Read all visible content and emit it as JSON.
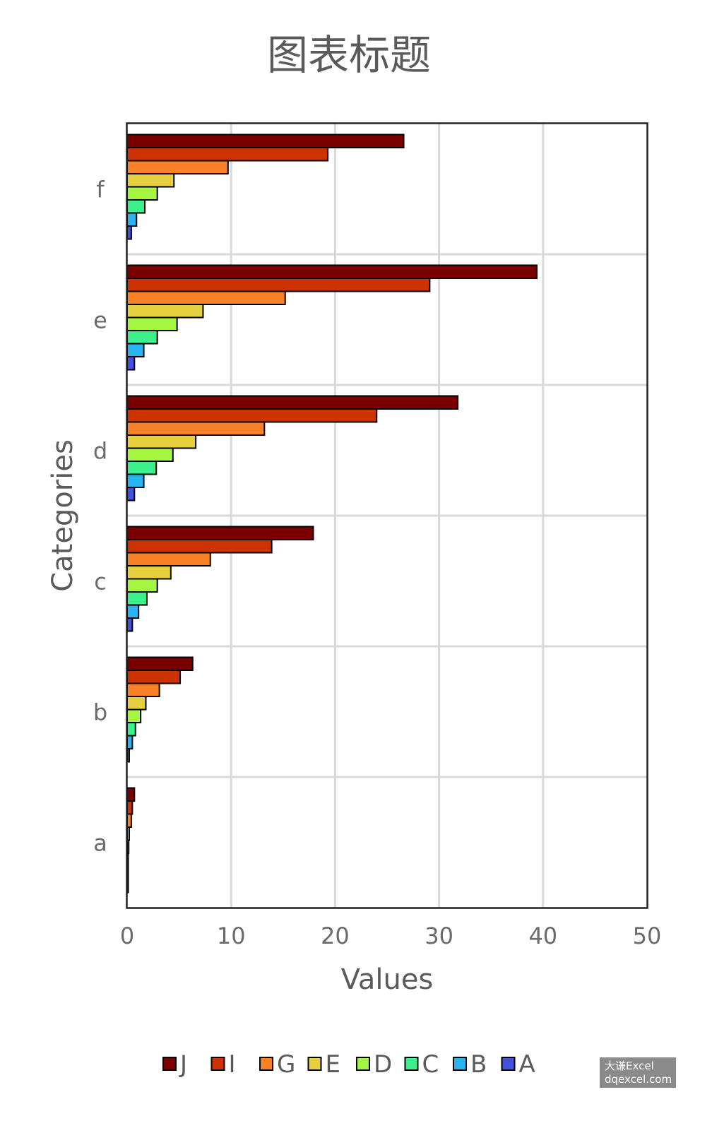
{
  "chart_data": {
    "type": "bar",
    "orientation": "horizontal",
    "title": "图表标题",
    "xlabel": "Values",
    "ylabel": "Categories",
    "xlim": [
      0,
      50
    ],
    "xticks": [
      "0",
      "10",
      "20",
      "30",
      "40",
      "50"
    ],
    "categories": [
      "a",
      "b",
      "c",
      "d",
      "e",
      "f"
    ],
    "grid": true,
    "legend_position": "bottom",
    "series": [
      {
        "name": "J",
        "color": "#7a0000",
        "values": [
          0.7,
          6.3,
          17.9,
          31.8,
          39.4,
          26.6
        ]
      },
      {
        "name": "I",
        "color": "#cc3300",
        "values": [
          0.5,
          5.1,
          13.9,
          24.0,
          29.1,
          19.3
        ]
      },
      {
        "name": "G",
        "color": "#f98228",
        "values": [
          0.4,
          3.1,
          8.0,
          13.2,
          15.2,
          9.7
        ]
      },
      {
        "name": "E",
        "color": "#e6d040",
        "values": [
          0.2,
          1.8,
          4.2,
          6.6,
          7.3,
          4.5
        ]
      },
      {
        "name": "D",
        "color": "#a4f640",
        "values": [
          0.15,
          1.3,
          2.9,
          4.4,
          4.8,
          2.9
        ]
      },
      {
        "name": "C",
        "color": "#3cf08c",
        "values": [
          0.1,
          0.8,
          1.9,
          2.8,
          2.9,
          1.7
        ]
      },
      {
        "name": "B",
        "color": "#28b4f0",
        "values": [
          0.05,
          0.5,
          1.1,
          1.6,
          1.6,
          0.9
        ]
      },
      {
        "name": "A",
        "color": "#4550e0",
        "values": [
          0.02,
          0.2,
          0.5,
          0.7,
          0.7,
          0.4
        ]
      }
    ]
  },
  "watermark": {
    "line1": "大谦Excel",
    "line2": "dqexcel.com"
  }
}
